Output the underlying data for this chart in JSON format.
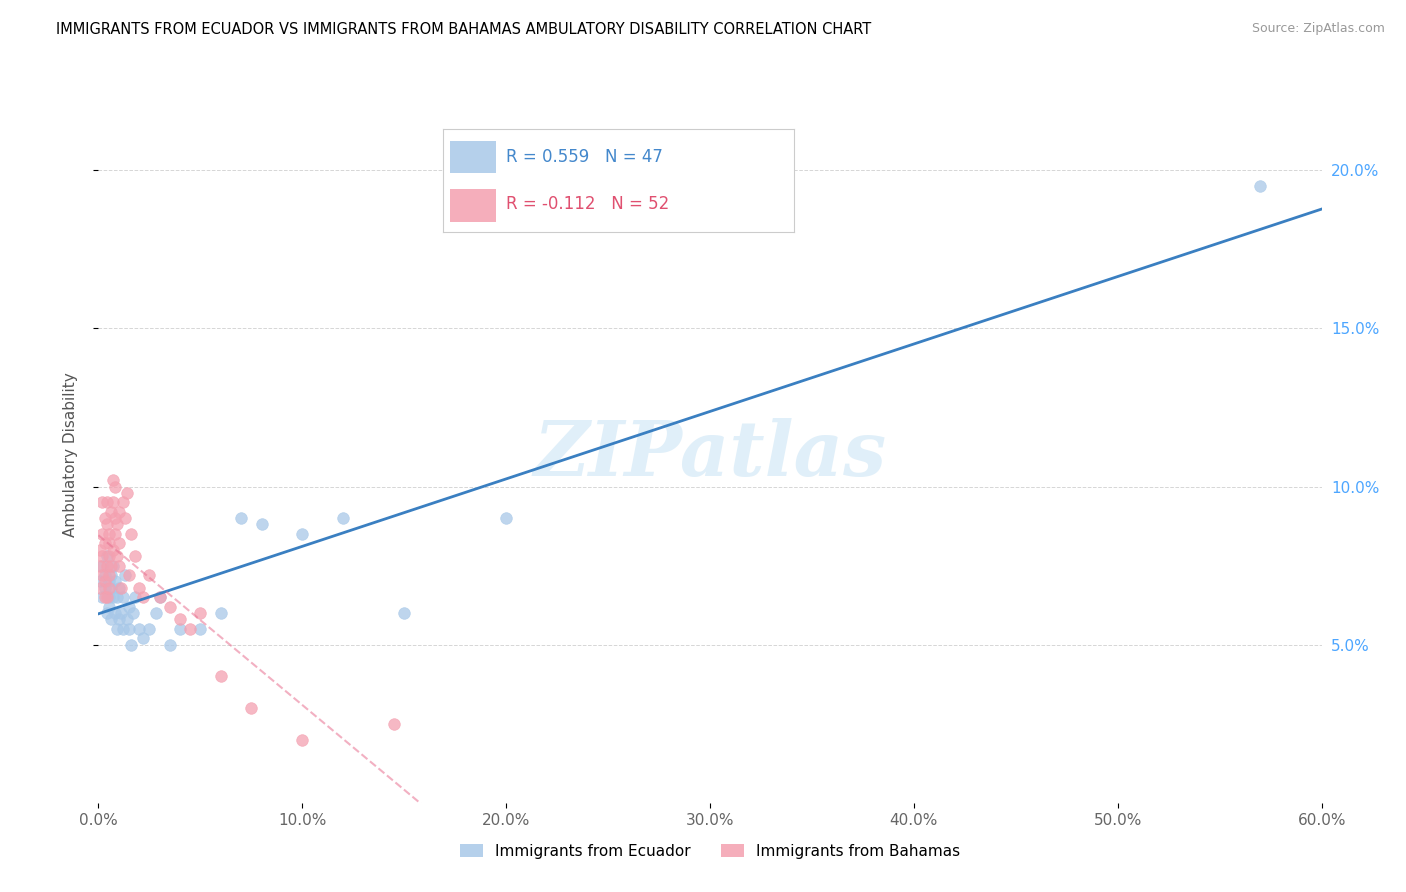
{
  "title": "IMMIGRANTS FROM ECUADOR VS IMMIGRANTS FROM BAHAMAS AMBULATORY DISABILITY CORRELATION CHART",
  "source": "Source: ZipAtlas.com",
  "ylabel": "Ambulatory Disability",
  "xlim": [
    0.0,
    0.6
  ],
  "ylim": [
    0.0,
    0.22
  ],
  "xticks": [
    0.0,
    0.1,
    0.2,
    0.3,
    0.4,
    0.5,
    0.6
  ],
  "yticks": [
    0.05,
    0.1,
    0.15,
    0.2
  ],
  "xticklabels": [
    "0.0%",
    "10.0%",
    "20.0%",
    "30.0%",
    "40.0%",
    "50.0%",
    "60.0%"
  ],
  "yticklabels": [
    "5.0%",
    "10.0%",
    "15.0%",
    "20.0%"
  ],
  "ecuador_color": "#a8c8e8",
  "bahamas_color": "#f4a0b0",
  "ecuador_line_color": "#3a7fc1",
  "bahamas_line_color": "#e87090",
  "ecuador_R": 0.559,
  "ecuador_N": 47,
  "bahamas_R": -0.112,
  "bahamas_N": 52,
  "watermark": "ZIPatlas",
  "ecuador_x": [
    0.001,
    0.002,
    0.002,
    0.003,
    0.003,
    0.004,
    0.004,
    0.005,
    0.005,
    0.005,
    0.006,
    0.006,
    0.006,
    0.007,
    0.007,
    0.008,
    0.008,
    0.009,
    0.009,
    0.01,
    0.01,
    0.011,
    0.012,
    0.012,
    0.013,
    0.014,
    0.015,
    0.015,
    0.016,
    0.017,
    0.018,
    0.02,
    0.022,
    0.025,
    0.028,
    0.03,
    0.035,
    0.04,
    0.05,
    0.06,
    0.07,
    0.08,
    0.1,
    0.12,
    0.15,
    0.2,
    0.57
  ],
  "ecuador_y": [
    0.07,
    0.065,
    0.075,
    0.068,
    0.072,
    0.06,
    0.078,
    0.065,
    0.07,
    0.062,
    0.068,
    0.072,
    0.058,
    0.065,
    0.075,
    0.06,
    0.07,
    0.055,
    0.065,
    0.058,
    0.068,
    0.06,
    0.055,
    0.065,
    0.072,
    0.058,
    0.055,
    0.062,
    0.05,
    0.06,
    0.065,
    0.055,
    0.052,
    0.055,
    0.06,
    0.065,
    0.05,
    0.055,
    0.055,
    0.06,
    0.09,
    0.088,
    0.085,
    0.09,
    0.06,
    0.09,
    0.195
  ],
  "bahamas_x": [
    0.001,
    0.001,
    0.001,
    0.002,
    0.002,
    0.002,
    0.002,
    0.003,
    0.003,
    0.003,
    0.003,
    0.004,
    0.004,
    0.004,
    0.004,
    0.005,
    0.005,
    0.005,
    0.005,
    0.005,
    0.006,
    0.006,
    0.007,
    0.007,
    0.007,
    0.008,
    0.008,
    0.008,
    0.009,
    0.009,
    0.01,
    0.01,
    0.01,
    0.011,
    0.012,
    0.013,
    0.014,
    0.015,
    0.016,
    0.018,
    0.02,
    0.022,
    0.025,
    0.03,
    0.035,
    0.04,
    0.045,
    0.05,
    0.06,
    0.075,
    0.1,
    0.145
  ],
  "bahamas_y": [
    0.075,
    0.08,
    0.068,
    0.095,
    0.085,
    0.072,
    0.078,
    0.065,
    0.09,
    0.082,
    0.07,
    0.075,
    0.088,
    0.065,
    0.095,
    0.078,
    0.082,
    0.068,
    0.072,
    0.085,
    0.075,
    0.092,
    0.08,
    0.095,
    0.102,
    0.09,
    0.1,
    0.085,
    0.088,
    0.078,
    0.082,
    0.075,
    0.092,
    0.068,
    0.095,
    0.09,
    0.098,
    0.072,
    0.085,
    0.078,
    0.068,
    0.065,
    0.072,
    0.065,
    0.062,
    0.058,
    0.055,
    0.06,
    0.04,
    0.03,
    0.02,
    0.025
  ]
}
